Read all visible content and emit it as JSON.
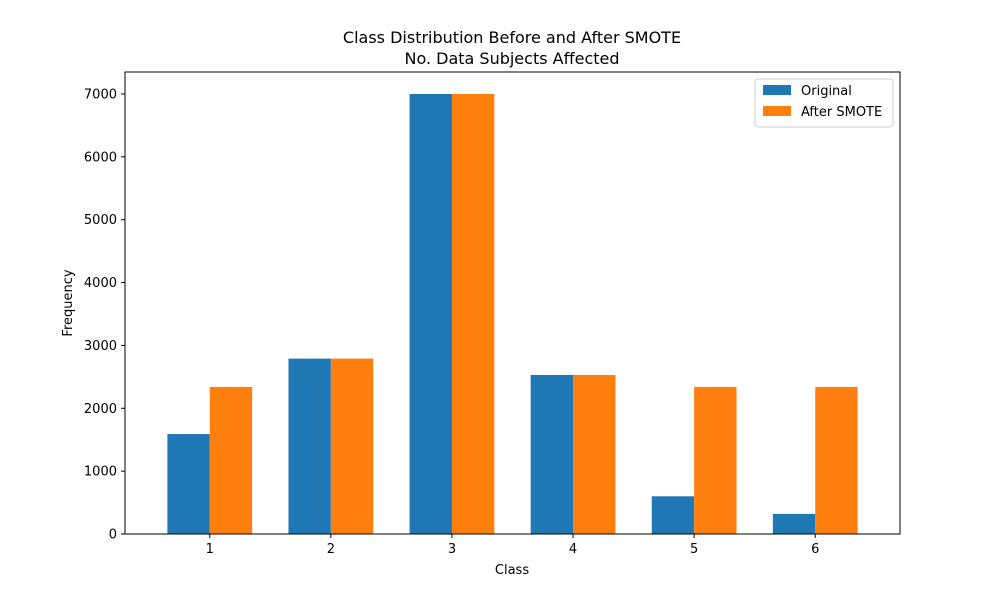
{
  "chart_data": {
    "type": "bar",
    "title": "Class Distribution Before and After SMOTE",
    "subtitle": "No. Data Subjects Affected",
    "xlabel": "Class",
    "ylabel": "Frequency",
    "categories": [
      "1",
      "2",
      "3",
      "4",
      "5",
      "6"
    ],
    "series": [
      {
        "name": "Original",
        "color": "#1f77b4",
        "values": [
          1590,
          2790,
          7000,
          2530,
          600,
          320
        ]
      },
      {
        "name": "After SMOTE",
        "color": "#ff7f0e",
        "values": [
          2340,
          2790,
          7000,
          2530,
          2340,
          2340
        ]
      }
    ],
    "ylim": [
      0,
      7350
    ],
    "yticks": [
      0,
      1000,
      2000,
      3000,
      4000,
      5000,
      6000,
      7000
    ],
    "legend_position": "top-right",
    "grid": false
  }
}
